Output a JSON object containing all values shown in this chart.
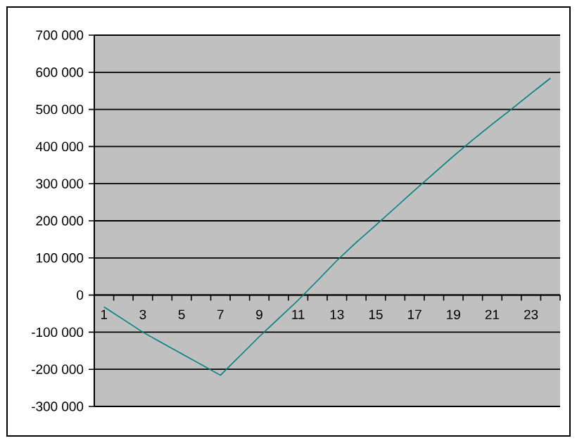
{
  "chart_data": {
    "type": "line",
    "categories": [
      "1",
      null,
      "3",
      null,
      "5",
      null,
      "7",
      null,
      "9",
      null,
      "11",
      null,
      "13",
      null,
      "15",
      null,
      "17",
      null,
      "19",
      null,
      "21",
      null,
      "23",
      null
    ],
    "values": [
      -32000,
      -66000,
      -100000,
      -129000,
      -158000,
      -187000,
      -216000,
      -164000,
      -112000,
      -63000,
      -14000,
      39000,
      93000,
      142000,
      188000,
      235000,
      282000,
      328000,
      374000,
      418000,
      460000,
      501000,
      543000,
      584000
    ],
    "color": "#008080",
    "ylim": [
      -300000,
      700000
    ],
    "yticks": [
      {
        "value": -300000,
        "label": "-300 000"
      },
      {
        "value": -200000,
        "label": "-200 000"
      },
      {
        "value": -100000,
        "label": "-100 000"
      },
      {
        "value": 0,
        "label": "0"
      },
      {
        "value": 100000,
        "label": "100 000"
      },
      {
        "value": 200000,
        "label": "200 000"
      },
      {
        "value": 300000,
        "label": "300 000"
      },
      {
        "value": 400000,
        "label": "400 000"
      },
      {
        "value": 500000,
        "label": "500 000"
      },
      {
        "value": 600000,
        "label": "600 000"
      },
      {
        "value": 700000,
        "label": "700 000"
      }
    ],
    "grid": "y",
    "marker": "none",
    "line_style": "solid"
  }
}
